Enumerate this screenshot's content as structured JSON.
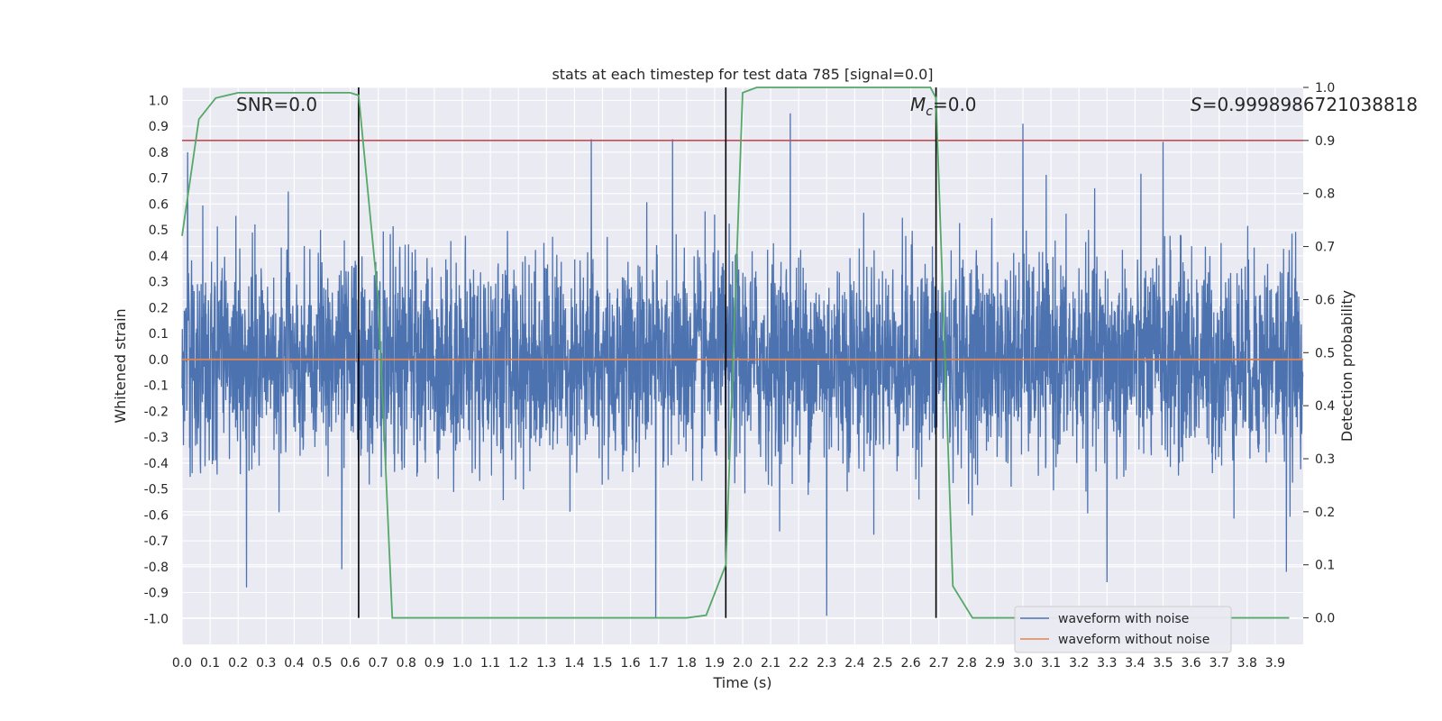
{
  "chart_data": {
    "type": "line",
    "title": "stats at each timestep for test data 785 [signal=0.0]",
    "xlabel": "Time (s)",
    "ylabel_left": "Whitened strain",
    "ylabel_right": "Detection probability",
    "xlim": [
      0.0,
      4.0
    ],
    "ylim_left": [
      -1.1,
      1.05
    ],
    "ylim_right": [
      -0.05,
      1.0
    ],
    "x_ticks": [
      "0.0",
      "0.1",
      "0.2",
      "0.3",
      "0.4",
      "0.5",
      "0.6",
      "0.7",
      "0.8",
      "0.9",
      "1.0",
      "1.1",
      "1.2",
      "1.3",
      "1.4",
      "1.5",
      "1.6",
      "1.7",
      "1.8",
      "1.9",
      "2.0",
      "2.1",
      "2.2",
      "2.3",
      "2.4",
      "2.5",
      "2.6",
      "2.7",
      "2.8",
      "2.9",
      "3.0",
      "3.1",
      "3.2",
      "3.3",
      "3.4",
      "3.5",
      "3.6",
      "3.7",
      "3.8",
      "3.9"
    ],
    "y_ticks_left": [
      "1.0",
      "0.9",
      "0.8",
      "0.7",
      "0.6",
      "0.5",
      "0.4",
      "0.3",
      "0.2",
      "0.1",
      "0.0",
      "-0.1",
      "-0.2",
      "-0.3",
      "-0.4",
      "-0.5",
      "-0.6",
      "-0.7",
      "-0.8",
      "-0.9",
      "-1.0"
    ],
    "y_ticks_right": [
      "1.0",
      "0.9",
      "0.8",
      "0.7",
      "0.6",
      "0.5",
      "0.4",
      "0.3",
      "0.2",
      "0.1",
      "0.0"
    ],
    "annotations": {
      "snr": "SNR=0.0",
      "mc_symbol": "M",
      "mc_subscript": "c",
      "mc_value": "=0.0",
      "s_symbol": "S",
      "s_value": "=0.9998986721038818"
    },
    "series": [
      {
        "name": "waveform with noise",
        "color": "#4c72b0",
        "axis": "left",
        "amplitude_range": [
          -1.0,
          0.95
        ],
        "peaks": [
          [
            0.02,
            0.8
          ],
          [
            0.23,
            -0.88
          ],
          [
            0.57,
            -0.81
          ],
          [
            1.46,
            0.85
          ],
          [
            1.69,
            -1.0
          ],
          [
            1.75,
            0.85
          ],
          [
            2.17,
            0.95
          ],
          [
            2.3,
            -0.99
          ],
          [
            3.0,
            0.91
          ],
          [
            3.3,
            -0.86
          ],
          [
            3.5,
            0.84
          ],
          [
            3.94,
            -0.82
          ]
        ]
      },
      {
        "name": "waveform without noise",
        "color": "#dd8452",
        "axis": "left",
        "x": [
          0.0,
          4.0
        ],
        "y": [
          0.0,
          0.0
        ]
      },
      {
        "name": "detection probability",
        "color": "#55a868",
        "axis": "right",
        "x": [
          0.0,
          0.06,
          0.12,
          0.2,
          0.3,
          0.5,
          0.6,
          0.63,
          0.7,
          0.75,
          0.8,
          1.0,
          1.5,
          1.8,
          1.87,
          1.94,
          2.0,
          2.05,
          2.2,
          2.5,
          2.6,
          2.67,
          2.69,
          2.75,
          2.82,
          2.9,
          3.5,
          3.95
        ],
        "y": [
          0.72,
          0.94,
          0.98,
          0.99,
          0.99,
          0.99,
          0.99,
          0.985,
          0.6,
          0.0,
          0.0,
          0.0,
          0.0,
          0.0,
          0.005,
          0.1,
          0.99,
          1.0,
          1.0,
          1.0,
          1.0,
          1.0,
          0.98,
          0.06,
          0.0,
          0.0,
          0.0,
          0.0
        ]
      }
    ],
    "threshold": {
      "value": 0.9,
      "axis": "right",
      "color": "#c44e52"
    },
    "vertical_markers": [
      0.63,
      1.94,
      2.69
    ],
    "legend": {
      "position": "bottom-right",
      "entries": [
        "waveform with noise",
        "waveform without noise"
      ]
    },
    "grid": true
  }
}
